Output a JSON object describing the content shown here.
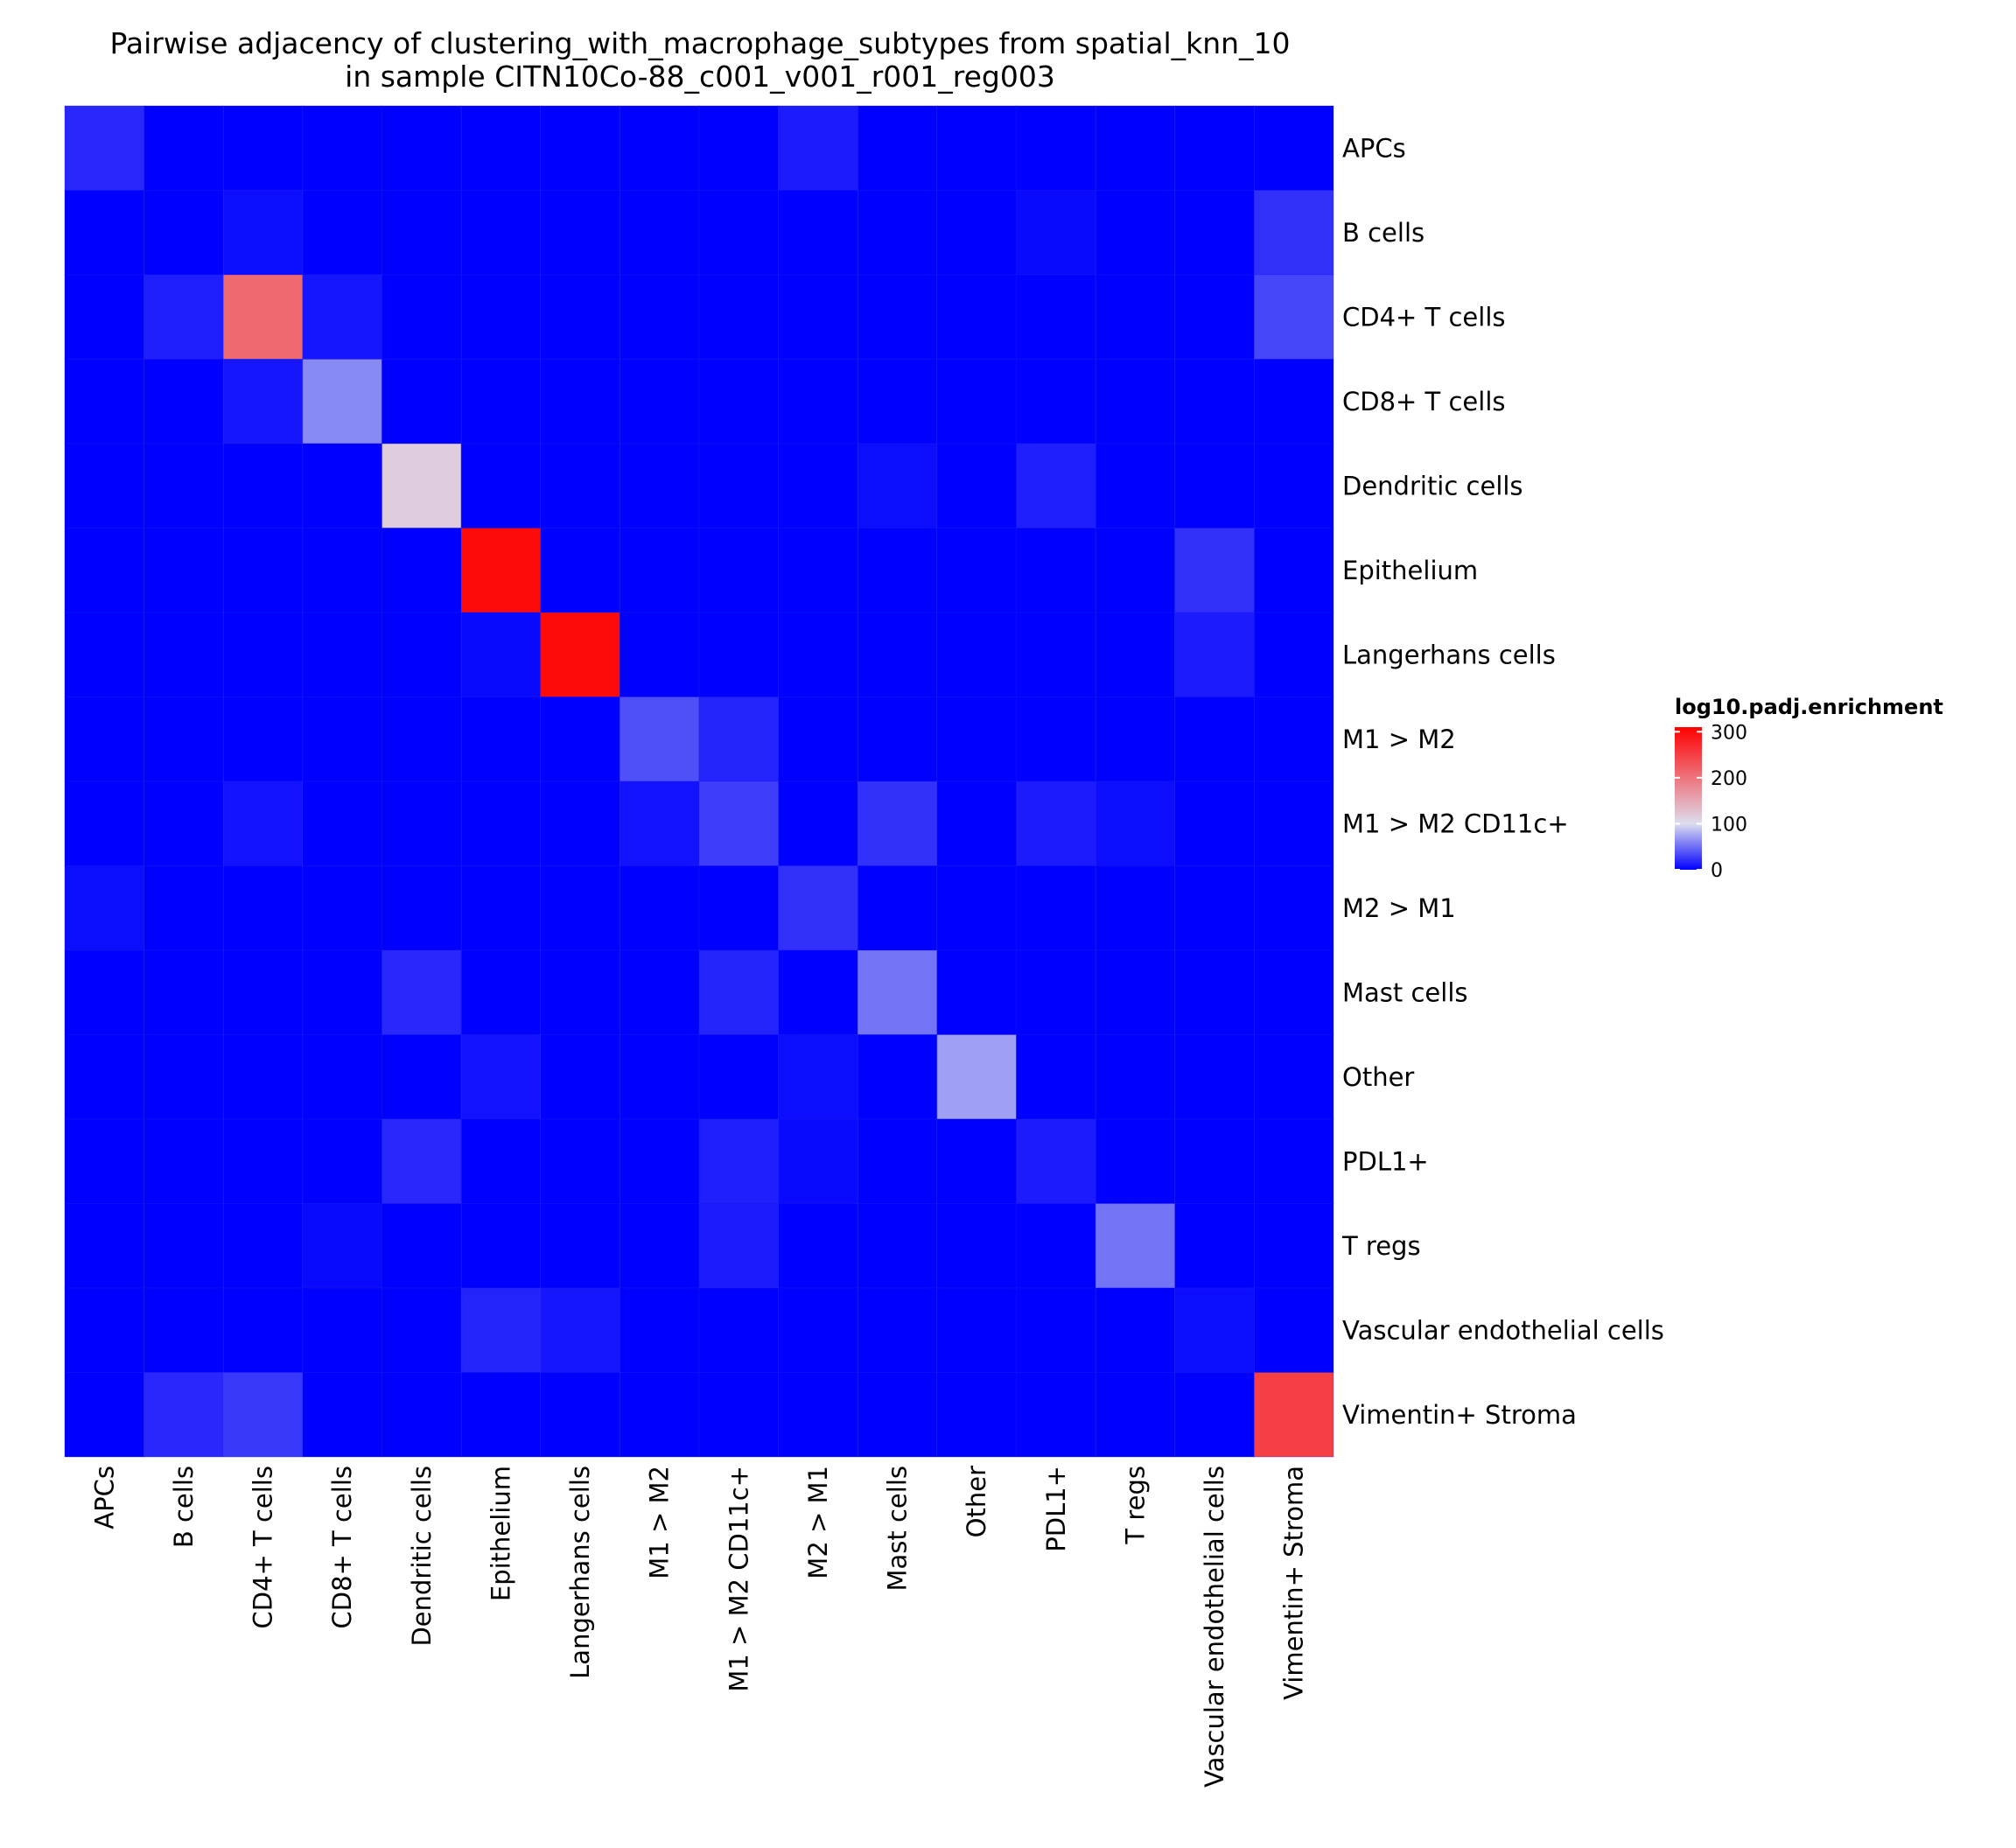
{
  "chart_data": {
    "type": "heatmap",
    "title_line1": "Pairwise adjacency of clustering_with_macrophage_subtypes from spatial_knn_10",
    "title_line2": "in sample CITN10Co-88_c001_v001_r001_reg003",
    "rows": [
      "APCs",
      "B cells",
      "CD4+ T cells",
      "CD8+ T cells",
      "Dendritic cells",
      "Epithelium",
      "Langerhans cells",
      "M1 > M2",
      "M1 > M2 CD11c+",
      "M2 > M1",
      "Mast cells",
      "Other",
      "PDL1+",
      "T regs",
      "Vascular endothelial cells",
      "Vimentin+ Stroma"
    ],
    "columns": [
      "APCs",
      "B cells",
      "CD4+ T cells",
      "CD8+ T cells",
      "Dendritic cells",
      "Epithelium",
      "Langerhans cells",
      "M1 > M2",
      "M1 > M2 CD11c+",
      "M2 > M1",
      "Mast cells",
      "Other",
      "PDL1+",
      "T regs",
      "Vascular endothelial cells",
      "Vimentin+ Stroma"
    ],
    "values": [
      [
        18,
        0,
        0,
        0,
        0,
        0,
        0,
        0,
        0,
        12,
        0,
        0,
        0,
        0,
        0,
        0
      ],
      [
        0,
        0,
        6,
        0,
        0,
        0,
        0,
        0,
        0,
        0,
        0,
        0,
        4,
        0,
        0,
        22
      ],
      [
        0,
        14,
        210,
        10,
        0,
        0,
        0,
        0,
        0,
        0,
        0,
        0,
        0,
        0,
        0,
        32
      ],
      [
        0,
        0,
        10,
        62,
        0,
        0,
        0,
        0,
        0,
        0,
        0,
        0,
        0,
        0,
        0,
        0
      ],
      [
        0,
        0,
        0,
        0,
        115,
        0,
        0,
        0,
        0,
        0,
        6,
        0,
        14,
        0,
        0,
        0
      ],
      [
        0,
        0,
        0,
        0,
        0,
        300,
        0,
        0,
        0,
        0,
        0,
        0,
        0,
        0,
        22,
        0
      ],
      [
        0,
        0,
        0,
        0,
        0,
        4,
        300,
        0,
        0,
        0,
        0,
        0,
        0,
        0,
        12,
        0
      ],
      [
        0,
        0,
        0,
        0,
        0,
        0,
        0,
        36,
        16,
        0,
        0,
        0,
        0,
        0,
        0,
        0
      ],
      [
        0,
        0,
        8,
        0,
        0,
        0,
        0,
        8,
        28,
        0,
        22,
        0,
        12,
        6,
        0,
        0
      ],
      [
        6,
        0,
        0,
        0,
        0,
        0,
        0,
        0,
        0,
        22,
        0,
        0,
        0,
        0,
        0,
        0
      ],
      [
        0,
        0,
        0,
        0,
        18,
        0,
        0,
        0,
        16,
        0,
        52,
        0,
        0,
        0,
        0,
        0
      ],
      [
        0,
        0,
        0,
        0,
        0,
        8,
        0,
        0,
        0,
        6,
        0,
        72,
        0,
        0,
        0,
        0
      ],
      [
        0,
        0,
        0,
        0,
        18,
        0,
        0,
        0,
        14,
        4,
        0,
        0,
        12,
        0,
        0,
        0
      ],
      [
        0,
        0,
        0,
        4,
        0,
        0,
        0,
        0,
        12,
        0,
        0,
        0,
        0,
        52,
        0,
        0
      ],
      [
        0,
        0,
        0,
        0,
        0,
        16,
        10,
        0,
        0,
        0,
        0,
        0,
        0,
        0,
        6,
        0
      ],
      [
        0,
        18,
        26,
        0,
        0,
        0,
        0,
        0,
        0,
        0,
        0,
        0,
        0,
        0,
        0,
        250
      ]
    ],
    "colorscale": {
      "title": "log10.padj.enrichment",
      "min": 0,
      "mid": 100,
      "max": 310,
      "low_color": "#0000FF",
      "mid_color": "#DDDDEE",
      "high_color": "#FF0000",
      "ticks": [
        0,
        100,
        200,
        300
      ],
      "tick_labels": [
        "0",
        "100",
        "200",
        "300"
      ]
    },
    "grid": false
  }
}
